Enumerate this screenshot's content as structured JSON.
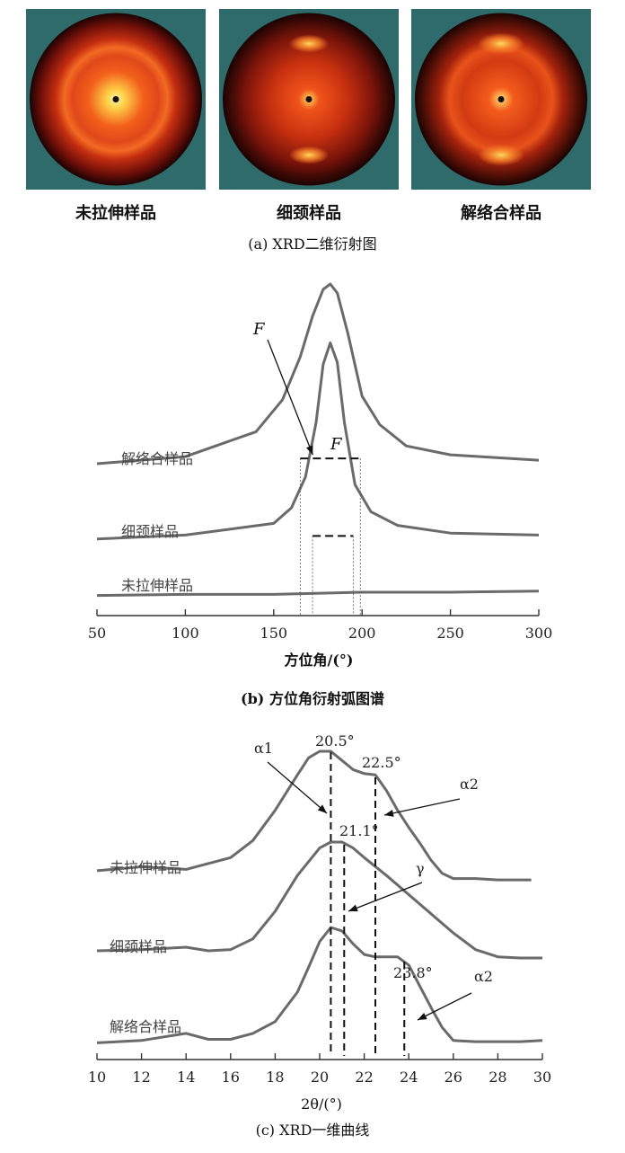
{
  "panel_a": {
    "caption": "(a) XRD二维衍射图",
    "images": [
      {
        "label": "未拉伸样品",
        "pattern": "isotropic-rings"
      },
      {
        "label": "细颈样品",
        "pattern": "equatorial-arcs"
      },
      {
        "label": "解络合样品",
        "pattern": "arcs-and-rings"
      }
    ],
    "colors": {
      "background": "#2f6b6b",
      "hot": "#ffdf5a",
      "mid": "#e8521b",
      "dark": "#6a0e08",
      "edge": "#1a0302"
    }
  },
  "panel_b": {
    "caption": "(b) 方位角衍射弧图谱",
    "xlabel": "方位角/(°)",
    "annotations": [
      "F",
      "F"
    ]
  },
  "panel_c": {
    "caption": "(c) XRD一维曲线",
    "xlabel": "2θ/(°)",
    "peak_labels": [
      "20.5°",
      "22.5°",
      "21.1°",
      "23.8°"
    ],
    "phase_labels": [
      "α1",
      "α2",
      "γ",
      "α2"
    ]
  },
  "chart_data": [
    {
      "type": "line",
      "title": "(b) 方位角衍射弧图谱",
      "xlabel": "方位角/(°)",
      "ylabel": "",
      "xlim": [
        50,
        300
      ],
      "xticks": [
        50,
        100,
        150,
        200,
        250,
        300
      ],
      "series": [
        {
          "name": "解络合样品",
          "x": [
            50,
            100,
            140,
            155,
            165,
            172,
            178,
            182,
            186,
            192,
            200,
            210,
            225,
            250,
            300
          ],
          "values": [
            0.02,
            0.06,
            0.2,
            0.38,
            0.62,
            0.85,
            1.0,
            1.03,
            0.98,
            0.75,
            0.4,
            0.24,
            0.12,
            0.07,
            0.04
          ]
        },
        {
          "name": "细颈样品",
          "x": [
            50,
            100,
            150,
            160,
            168,
            174,
            178,
            182,
            186,
            190,
            196,
            205,
            220,
            250,
            300
          ],
          "values": [
            0.02,
            0.04,
            0.1,
            0.18,
            0.34,
            0.62,
            0.92,
            1.03,
            0.93,
            0.62,
            0.3,
            0.16,
            0.09,
            0.05,
            0.04
          ]
        },
        {
          "name": "未拉伸样品",
          "x": [
            50,
            100,
            150,
            200,
            250,
            300
          ],
          "values": [
            0.02,
            0.03,
            0.03,
            0.05,
            0.05,
            0.06
          ]
        }
      ],
      "markers": [
        {
          "label": "F",
          "series": "解络合样品",
          "x_range": [
            165,
            199
          ]
        },
        {
          "label": "F",
          "series": "细颈样品",
          "x_range": [
            172,
            195
          ]
        }
      ]
    },
    {
      "type": "line",
      "title": "(c) XRD一维曲线",
      "xlabel": "2θ/(°)",
      "ylabel": "",
      "xlim": [
        10,
        30
      ],
      "xticks": [
        10,
        12,
        14,
        16,
        18,
        20,
        22,
        24,
        26,
        28,
        30
      ],
      "series": [
        {
          "name": "未拉伸样品",
          "x": [
            10,
            12,
            14,
            16,
            17,
            18,
            19,
            19.5,
            20,
            20.5,
            21,
            21.5,
            22,
            22.5,
            23,
            23.5,
            24,
            24.5,
            25,
            25.5,
            26,
            27,
            28,
            29,
            29.5
          ],
          "values": [
            0.09,
            0.12,
            0.1,
            0.19,
            0.32,
            0.55,
            0.82,
            0.95,
            1.0,
            1.0,
            0.93,
            0.86,
            0.83,
            0.82,
            0.7,
            0.55,
            0.42,
            0.3,
            0.17,
            0.07,
            0.03,
            0.03,
            0.02,
            0.02,
            0.02
          ]
        },
        {
          "name": "细颈样品",
          "x": [
            10,
            12,
            14,
            15,
            16,
            17,
            18,
            19,
            20,
            20.5,
            21,
            21.5,
            22,
            23,
            24,
            25,
            26,
            27,
            28,
            29,
            30
          ],
          "values": [
            0.09,
            0.1,
            0.12,
            0.09,
            0.1,
            0.19,
            0.42,
            0.72,
            0.95,
            1.0,
            1.0,
            0.95,
            0.87,
            0.72,
            0.56,
            0.4,
            0.24,
            0.1,
            0.04,
            0.03,
            0.03
          ]
        },
        {
          "name": "解络合样品",
          "x": [
            10,
            12,
            13,
            14,
            15,
            16,
            17,
            18,
            19,
            19.5,
            20,
            20.5,
            21,
            21.5,
            22,
            22.5,
            23,
            23.5,
            24,
            24.5,
            25,
            25.5,
            26,
            27,
            28,
            29,
            30
          ],
          "values": [
            0.02,
            0.04,
            0.07,
            0.1,
            0.05,
            0.05,
            0.1,
            0.2,
            0.45,
            0.66,
            0.88,
            1.0,
            0.97,
            0.86,
            0.77,
            0.75,
            0.75,
            0.75,
            0.68,
            0.5,
            0.32,
            0.15,
            0.04,
            0.03,
            0.03,
            0.03,
            0.04
          ]
        }
      ],
      "markers": [
        {
          "label": "20.5°",
          "x": 20.5,
          "phase": "α1"
        },
        {
          "label": "22.5°",
          "x": 22.5,
          "phase": "α2"
        },
        {
          "label": "21.1°",
          "x": 21.1,
          "phase": "γ"
        },
        {
          "label": "23.8°",
          "x": 23.8,
          "phase": "α2"
        }
      ]
    }
  ]
}
